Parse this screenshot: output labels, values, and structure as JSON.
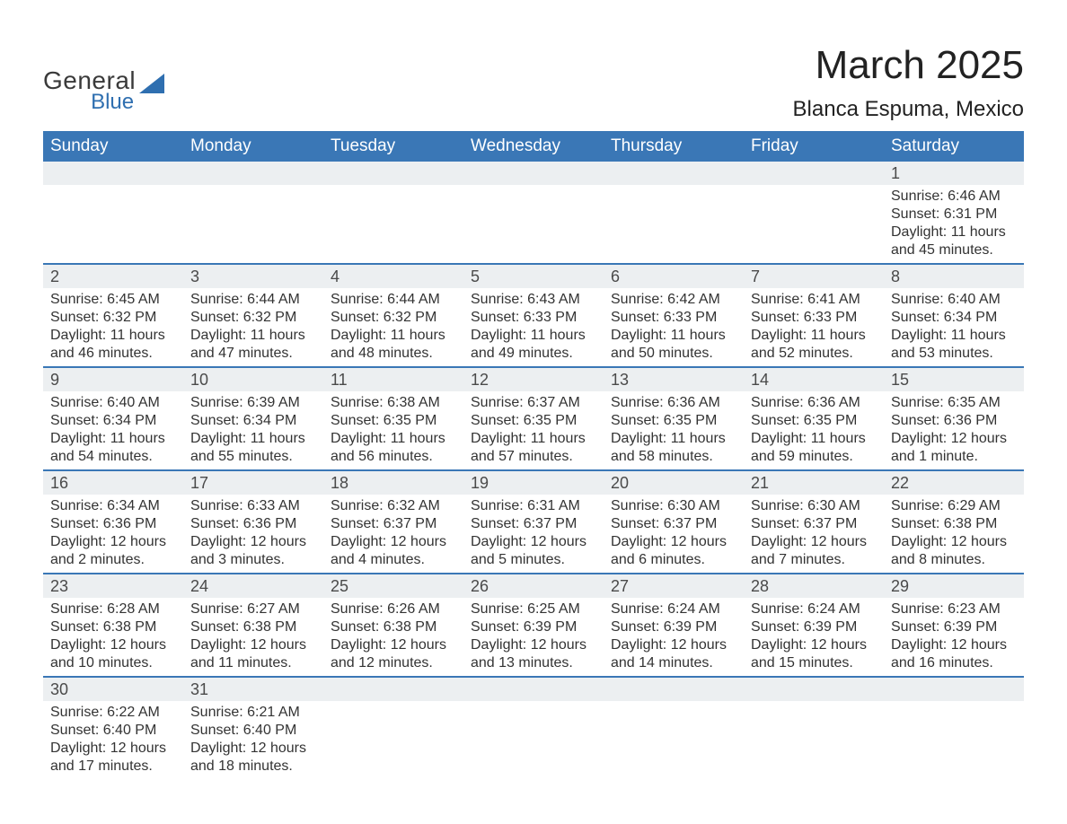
{
  "logo": {
    "general": "General",
    "blue": "Blue",
    "tri_color": "#2f6fb0"
  },
  "header": {
    "title": "March 2025",
    "location": "Blanca Espuma, Mexico",
    "title_fontsize": 44,
    "sub_fontsize": 24
  },
  "colors": {
    "header_bg": "#3a77b6",
    "header_text": "#ffffff",
    "daynum_bg": "#eceff1",
    "week_divider": "#3a77b6",
    "body_text": "#333333",
    "background": "#ffffff"
  },
  "calendar": {
    "day_headers": [
      "Sunday",
      "Monday",
      "Tuesday",
      "Wednesday",
      "Thursday",
      "Friday",
      "Saturday"
    ],
    "weeks": [
      [
        null,
        null,
        null,
        null,
        null,
        null,
        {
          "n": "1",
          "sunrise": "Sunrise: 6:46 AM",
          "sunset": "Sunset: 6:31 PM",
          "daylight": "Daylight: 11 hours and 45 minutes."
        }
      ],
      [
        {
          "n": "2",
          "sunrise": "Sunrise: 6:45 AM",
          "sunset": "Sunset: 6:32 PM",
          "daylight": "Daylight: 11 hours and 46 minutes."
        },
        {
          "n": "3",
          "sunrise": "Sunrise: 6:44 AM",
          "sunset": "Sunset: 6:32 PM",
          "daylight": "Daylight: 11 hours and 47 minutes."
        },
        {
          "n": "4",
          "sunrise": "Sunrise: 6:44 AM",
          "sunset": "Sunset: 6:32 PM",
          "daylight": "Daylight: 11 hours and 48 minutes."
        },
        {
          "n": "5",
          "sunrise": "Sunrise: 6:43 AM",
          "sunset": "Sunset: 6:33 PM",
          "daylight": "Daylight: 11 hours and 49 minutes."
        },
        {
          "n": "6",
          "sunrise": "Sunrise: 6:42 AM",
          "sunset": "Sunset: 6:33 PM",
          "daylight": "Daylight: 11 hours and 50 minutes."
        },
        {
          "n": "7",
          "sunrise": "Sunrise: 6:41 AM",
          "sunset": "Sunset: 6:33 PM",
          "daylight": "Daylight: 11 hours and 52 minutes."
        },
        {
          "n": "8",
          "sunrise": "Sunrise: 6:40 AM",
          "sunset": "Sunset: 6:34 PM",
          "daylight": "Daylight: 11 hours and 53 minutes."
        }
      ],
      [
        {
          "n": "9",
          "sunrise": "Sunrise: 6:40 AM",
          "sunset": "Sunset: 6:34 PM",
          "daylight": "Daylight: 11 hours and 54 minutes."
        },
        {
          "n": "10",
          "sunrise": "Sunrise: 6:39 AM",
          "sunset": "Sunset: 6:34 PM",
          "daylight": "Daylight: 11 hours and 55 minutes."
        },
        {
          "n": "11",
          "sunrise": "Sunrise: 6:38 AM",
          "sunset": "Sunset: 6:35 PM",
          "daylight": "Daylight: 11 hours and 56 minutes."
        },
        {
          "n": "12",
          "sunrise": "Sunrise: 6:37 AM",
          "sunset": "Sunset: 6:35 PM",
          "daylight": "Daylight: 11 hours and 57 minutes."
        },
        {
          "n": "13",
          "sunrise": "Sunrise: 6:36 AM",
          "sunset": "Sunset: 6:35 PM",
          "daylight": "Daylight: 11 hours and 58 minutes."
        },
        {
          "n": "14",
          "sunrise": "Sunrise: 6:36 AM",
          "sunset": "Sunset: 6:35 PM",
          "daylight": "Daylight: 11 hours and 59 minutes."
        },
        {
          "n": "15",
          "sunrise": "Sunrise: 6:35 AM",
          "sunset": "Sunset: 6:36 PM",
          "daylight": "Daylight: 12 hours and 1 minute."
        }
      ],
      [
        {
          "n": "16",
          "sunrise": "Sunrise: 6:34 AM",
          "sunset": "Sunset: 6:36 PM",
          "daylight": "Daylight: 12 hours and 2 minutes."
        },
        {
          "n": "17",
          "sunrise": "Sunrise: 6:33 AM",
          "sunset": "Sunset: 6:36 PM",
          "daylight": "Daylight: 12 hours and 3 minutes."
        },
        {
          "n": "18",
          "sunrise": "Sunrise: 6:32 AM",
          "sunset": "Sunset: 6:37 PM",
          "daylight": "Daylight: 12 hours and 4 minutes."
        },
        {
          "n": "19",
          "sunrise": "Sunrise: 6:31 AM",
          "sunset": "Sunset: 6:37 PM",
          "daylight": "Daylight: 12 hours and 5 minutes."
        },
        {
          "n": "20",
          "sunrise": "Sunrise: 6:30 AM",
          "sunset": "Sunset: 6:37 PM",
          "daylight": "Daylight: 12 hours and 6 minutes."
        },
        {
          "n": "21",
          "sunrise": "Sunrise: 6:30 AM",
          "sunset": "Sunset: 6:37 PM",
          "daylight": "Daylight: 12 hours and 7 minutes."
        },
        {
          "n": "22",
          "sunrise": "Sunrise: 6:29 AM",
          "sunset": "Sunset: 6:38 PM",
          "daylight": "Daylight: 12 hours and 8 minutes."
        }
      ],
      [
        {
          "n": "23",
          "sunrise": "Sunrise: 6:28 AM",
          "sunset": "Sunset: 6:38 PM",
          "daylight": "Daylight: 12 hours and 10 minutes."
        },
        {
          "n": "24",
          "sunrise": "Sunrise: 6:27 AM",
          "sunset": "Sunset: 6:38 PM",
          "daylight": "Daylight: 12 hours and 11 minutes."
        },
        {
          "n": "25",
          "sunrise": "Sunrise: 6:26 AM",
          "sunset": "Sunset: 6:38 PM",
          "daylight": "Daylight: 12 hours and 12 minutes."
        },
        {
          "n": "26",
          "sunrise": "Sunrise: 6:25 AM",
          "sunset": "Sunset: 6:39 PM",
          "daylight": "Daylight: 12 hours and 13 minutes."
        },
        {
          "n": "27",
          "sunrise": "Sunrise: 6:24 AM",
          "sunset": "Sunset: 6:39 PM",
          "daylight": "Daylight: 12 hours and 14 minutes."
        },
        {
          "n": "28",
          "sunrise": "Sunrise: 6:24 AM",
          "sunset": "Sunset: 6:39 PM",
          "daylight": "Daylight: 12 hours and 15 minutes."
        },
        {
          "n": "29",
          "sunrise": "Sunrise: 6:23 AM",
          "sunset": "Sunset: 6:39 PM",
          "daylight": "Daylight: 12 hours and 16 minutes."
        }
      ],
      [
        {
          "n": "30",
          "sunrise": "Sunrise: 6:22 AM",
          "sunset": "Sunset: 6:40 PM",
          "daylight": "Daylight: 12 hours and 17 minutes."
        },
        {
          "n": "31",
          "sunrise": "Sunrise: 6:21 AM",
          "sunset": "Sunset: 6:40 PM",
          "daylight": "Daylight: 12 hours and 18 minutes."
        },
        null,
        null,
        null,
        null,
        null
      ]
    ]
  }
}
